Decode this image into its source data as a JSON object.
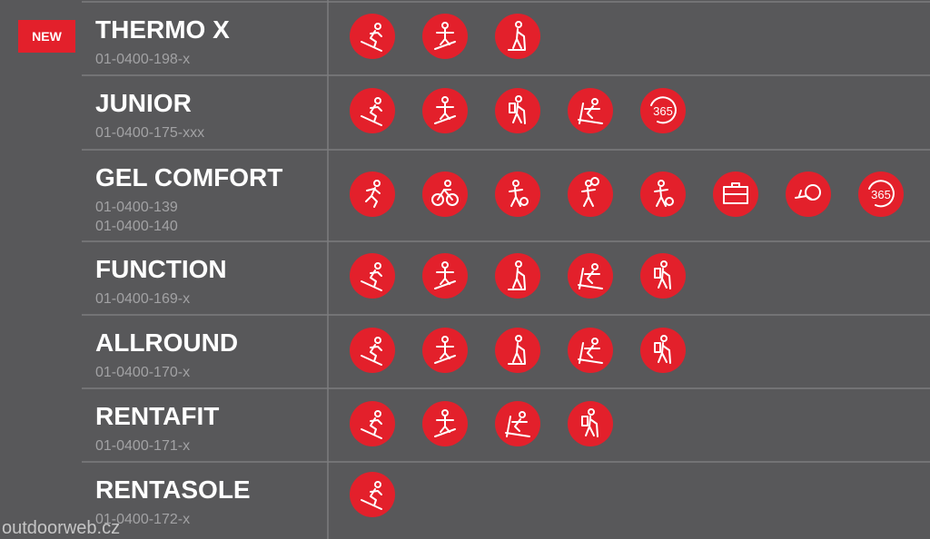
{
  "badge_new": "NEW",
  "rows": [
    {
      "name": "THERMO X",
      "codes": [
        "01-0400-198-x"
      ]
    },
    {
      "name": "JUNIOR",
      "codes": [
        "01-0400-175-xxx"
      ],
      "icon_label": "365"
    },
    {
      "name": "GEL COMFORT",
      "codes": [
        "01-0400-139",
        "01-0400-140"
      ],
      "icon_label": "365"
    },
    {
      "name": "FUNCTION",
      "codes": [
        "01-0400-169-x"
      ]
    },
    {
      "name": "ALLROUND",
      "codes": [
        "01-0400-170-x"
      ]
    },
    {
      "name": "RENTAFIT",
      "codes": [
        "01-0400-171-x"
      ]
    },
    {
      "name": "RENTASOLE",
      "codes": [
        "01-0400-172-x"
      ]
    }
  ],
  "watermark": "outdoorweb.cz"
}
